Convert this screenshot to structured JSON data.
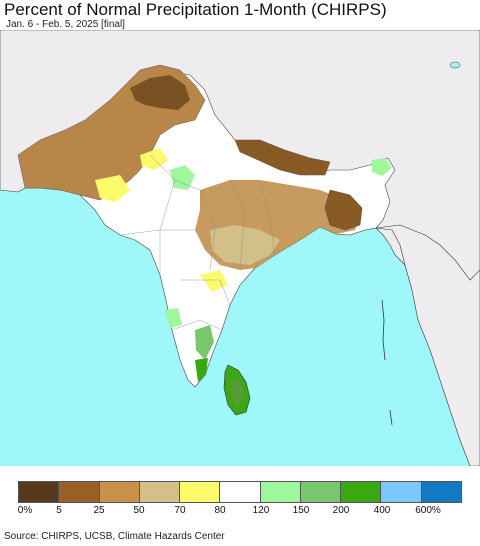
{
  "title": "Percent of Normal Precipitation 1-Month (CHIRPS)",
  "subtitle": "Jan. 6 - Feb. 5, 2025 [final]",
  "legend": {
    "colors": [
      "#56391a",
      "#9a5f24",
      "#c99149",
      "#d3c089",
      "#fdfb6c",
      "#ffffff",
      "#9ef79d",
      "#78c66e",
      "#3aa812",
      "#79c7fb",
      "#1479c5"
    ],
    "labels": [
      "0%",
      "5",
      "25",
      "50",
      "70",
      "80",
      "120",
      "150",
      "200",
      "400",
      "600%"
    ]
  },
  "source": "Source: CHIRPS, UCSB, Climate Hazards Center"
}
